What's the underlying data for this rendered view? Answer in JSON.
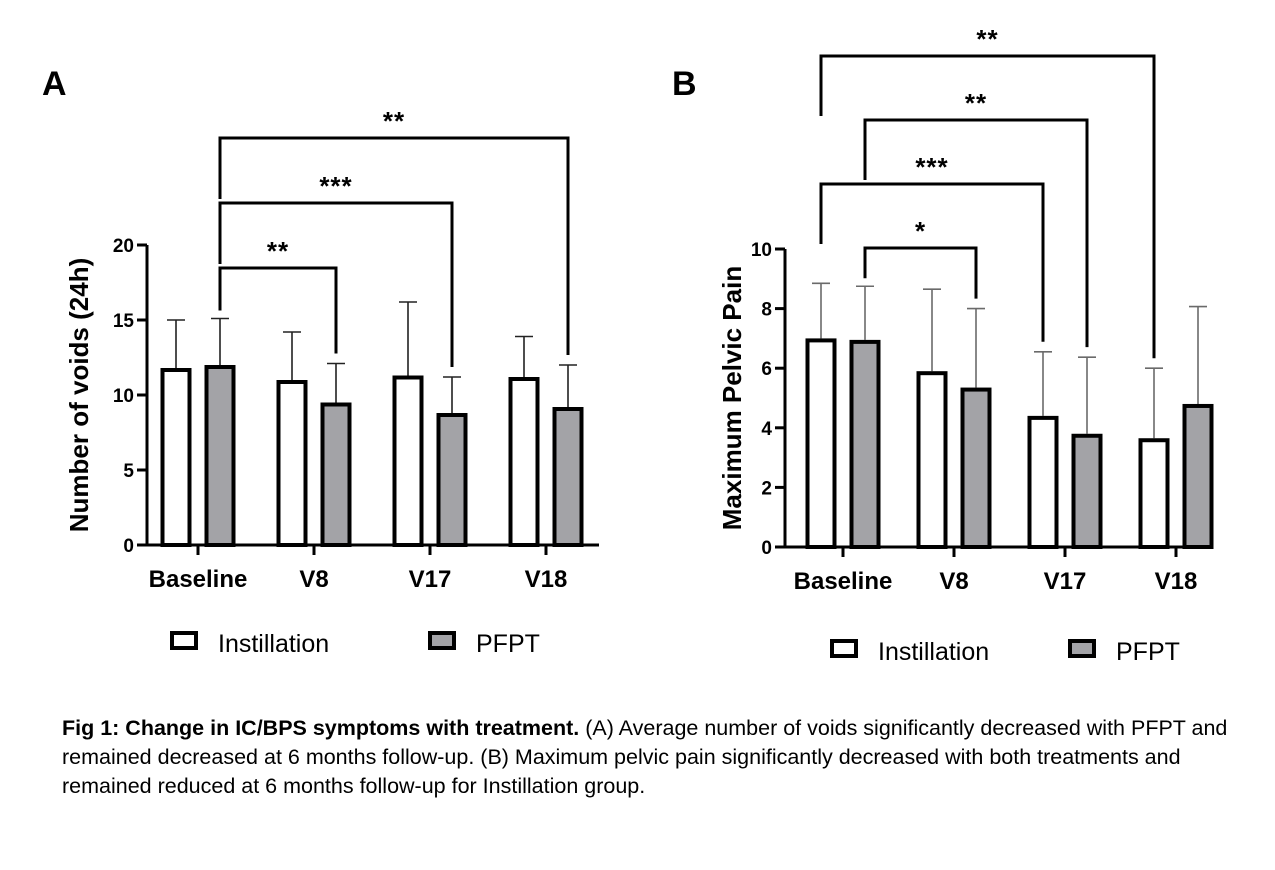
{
  "chart_data": [
    {
      "panel": "A",
      "type": "bar",
      "title": "",
      "xlabel": "",
      "ylabel": "Number of voids (24h)",
      "ylim": [
        0,
        20
      ],
      "yticks": [
        0,
        5,
        10,
        15,
        20
      ],
      "categories": [
        "Baseline",
        "V8",
        "V17",
        "V18"
      ],
      "series": [
        {
          "name": "Instillation",
          "values": [
            11.8,
            11.0,
            11.3,
            11.2
          ],
          "error_upper": [
            15.0,
            14.2,
            16.2,
            13.9
          ],
          "color": "#ffffff"
        },
        {
          "name": "PFPT",
          "values": [
            12.0,
            9.5,
            8.8,
            9.2
          ],
          "error_upper": [
            15.1,
            12.1,
            11.2,
            12.0
          ],
          "color": "#a3a3a7"
        }
      ],
      "significance": [
        {
          "from": {
            "category": "Baseline",
            "series": "PFPT"
          },
          "to": {
            "category": "V8",
            "series": "PFPT"
          },
          "label": "**"
        },
        {
          "from": {
            "category": "Baseline",
            "series": "PFPT"
          },
          "to": {
            "category": "V17",
            "series": "PFPT"
          },
          "label": "***"
        },
        {
          "from": {
            "category": "Baseline",
            "series": "PFPT"
          },
          "to": {
            "category": "V18",
            "series": "PFPT"
          },
          "label": "**"
        }
      ],
      "legend": {
        "placement": "bottom",
        "entries": [
          "Instillation",
          "PFPT"
        ]
      },
      "grid": false
    },
    {
      "panel": "B",
      "type": "bar",
      "title": "",
      "xlabel": "",
      "ylabel": "Maximum Pelvic Pain",
      "ylim": [
        0,
        10
      ],
      "yticks": [
        0,
        2,
        4,
        6,
        8,
        10
      ],
      "categories": [
        "Baseline",
        "V8",
        "V17",
        "V18"
      ],
      "series": [
        {
          "name": "Instillation",
          "values": [
            7.0,
            5.9,
            4.4,
            3.65
          ],
          "error_upper": [
            8.85,
            8.65,
            6.55,
            6.0
          ],
          "color": "#ffffff"
        },
        {
          "name": "PFPT",
          "values": [
            6.95,
            5.35,
            3.8,
            4.8
          ],
          "error_upper": [
            8.75,
            8.0,
            6.37,
            8.07
          ],
          "color": "#a3a3a7"
        }
      ],
      "significance": [
        {
          "from": {
            "category": "Baseline",
            "series": "PFPT"
          },
          "to": {
            "category": "V8",
            "series": "PFPT"
          },
          "label": "*"
        },
        {
          "from": {
            "category": "Baseline",
            "series": "Instillation"
          },
          "to": {
            "category": "V17",
            "series": "Instillation"
          },
          "label": "***"
        },
        {
          "from": {
            "category": "Baseline",
            "series": "PFPT"
          },
          "to": {
            "category": "V17",
            "series": "PFPT"
          },
          "label": "**"
        },
        {
          "from": {
            "category": "Baseline",
            "series": "Instillation"
          },
          "to": {
            "category": "V18",
            "series": "Instillation"
          },
          "label": "**"
        }
      ],
      "legend": {
        "placement": "bottom",
        "entries": [
          "Instillation",
          "PFPT"
        ]
      },
      "grid": false
    }
  ],
  "caption": {
    "bold": "Fig 1: Change in IC/BPS symptoms with treatment.",
    "text": " (A) Average number of voids significantly decreased with PFPT and remained decreased at 6 months follow-up. (B) Maximum pelvic pain significantly decreased with both treatments and remained reduced at 6 months follow-up for Instillation group."
  }
}
